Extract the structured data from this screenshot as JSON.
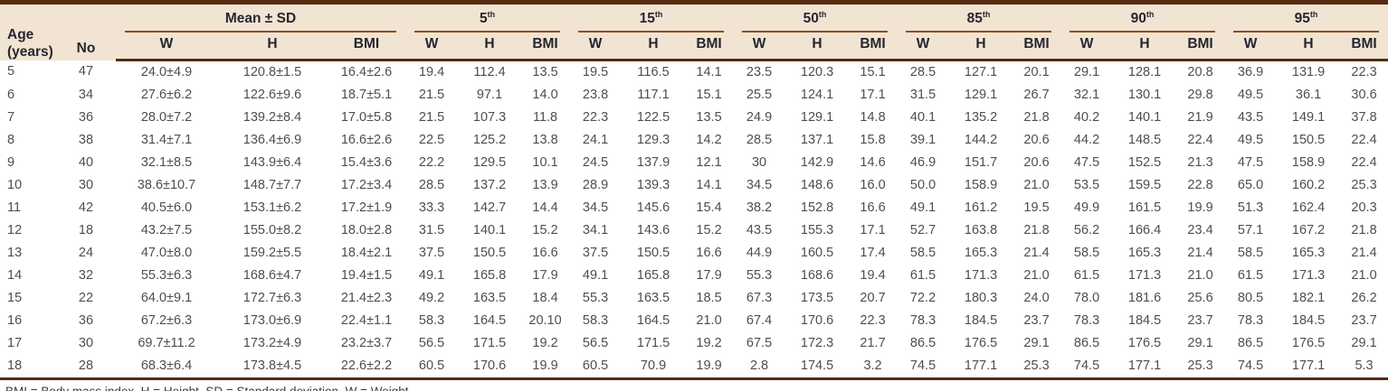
{
  "table": {
    "header": {
      "age_label": "Age",
      "age_sublabel": "(years)",
      "no_label": "No",
      "groups": [
        {
          "key": "mean-sd",
          "label": "Mean ± SD",
          "sup": ""
        },
        {
          "key": "p5",
          "label": "5",
          "sup": "th"
        },
        {
          "key": "p15",
          "label": "15",
          "sup": "th"
        },
        {
          "key": "p50",
          "label": "50",
          "sup": "th"
        },
        {
          "key": "p85",
          "label": "85",
          "sup": "th"
        },
        {
          "key": "p90",
          "label": "90",
          "sup": "th"
        },
        {
          "key": "p95",
          "label": "95",
          "sup": "th"
        }
      ],
      "sub_columns": [
        "W",
        "H",
        "BMI"
      ]
    },
    "rows": [
      {
        "age": "5",
        "no": "47",
        "values": [
          "24.0±4.9",
          "120.8±1.5",
          "16.4±2.6",
          "19.4",
          "112.4",
          "13.5",
          "19.5",
          "116.5",
          "14.1",
          "23.5",
          "120.3",
          "15.1",
          "28.5",
          "127.1",
          "20.1",
          "29.1",
          "128.1",
          "20.8",
          "36.9",
          "131.9",
          "22.3"
        ]
      },
      {
        "age": "6",
        "no": "34",
        "values": [
          "27.6±6.2",
          "122.6±9.6",
          "18.7±5.1",
          "21.5",
          "97.1",
          "14.0",
          "23.8",
          "117.1",
          "15.1",
          "25.5",
          "124.1",
          "17.1",
          "31.5",
          "129.1",
          "26.7",
          "32.1",
          "130.1",
          "29.8",
          "49.5",
          "36.1",
          "30.6"
        ]
      },
      {
        "age": "7",
        "no": "36",
        "values": [
          "28.0±7.2",
          "139.2±8.4",
          "17.0±5.8",
          "21.5",
          "107.3",
          "11.8",
          "22.3",
          "122.5",
          "13.5",
          "24.9",
          "129.1",
          "14.8",
          "40.1",
          "135.2",
          "21.8",
          "40.2",
          "140.1",
          "21.9",
          "43.5",
          "149.1",
          "37.8"
        ]
      },
      {
        "age": "8",
        "no": "38",
        "values": [
          "31.4±7.1",
          "136.4±6.9",
          "16.6±2.6",
          "22.5",
          "125.2",
          "13.8",
          "24.1",
          "129.3",
          "14.2",
          "28.5",
          "137.1",
          "15.8",
          "39.1",
          "144.2",
          "20.6",
          "44.2",
          "148.5",
          "22.4",
          "49.5",
          "150.5",
          "22.4"
        ]
      },
      {
        "age": "9",
        "no": "40",
        "values": [
          "32.1±8.5",
          "143.9±6.4",
          "15.4±3.6",
          "22.2",
          "129.5",
          "10.1",
          "24.5",
          "137.9",
          "12.1",
          "30",
          "142.9",
          "14.6",
          "46.9",
          "151.7",
          "20.6",
          "47.5",
          "152.5",
          "21.3",
          "47.5",
          "158.9",
          "22.4"
        ]
      },
      {
        "age": "10",
        "no": "30",
        "values": [
          "38.6±10.7",
          "148.7±7.7",
          "17.2±3.4",
          "28.5",
          "137.2",
          "13.9",
          "28.9",
          "139.3",
          "14.1",
          "34.5",
          "148.6",
          "16.0",
          "50.0",
          "158.9",
          "21.0",
          "53.5",
          "159.5",
          "22.8",
          "65.0",
          "160.2",
          "25.3"
        ]
      },
      {
        "age": "11",
        "no": "42",
        "values": [
          "40.5±6.0",
          "153.1±6.2",
          "17.2±1.9",
          "33.3",
          "142.7",
          "14.4",
          "34.5",
          "145.6",
          "15.4",
          "38.2",
          "152.8",
          "16.6",
          "49.1",
          "161.2",
          "19.5",
          "49.9",
          "161.5",
          "19.9",
          "51.3",
          "162.4",
          "20.3"
        ]
      },
      {
        "age": "12",
        "no": "18",
        "values": [
          "43.2±7.5",
          "155.0±8.2",
          "18.0±2.8",
          "31.5",
          "140.1",
          "15.2",
          "34.1",
          "143.6",
          "15.2",
          "43.5",
          "155.3",
          "17.1",
          "52.7",
          "163.8",
          "21.8",
          "56.2",
          "166.4",
          "23.4",
          "57.1",
          "167.2",
          "21.8"
        ]
      },
      {
        "age": "13",
        "no": "24",
        "values": [
          "47.0±8.0",
          "159.2±5.5",
          "18.4±2.1",
          "37.5",
          "150.5",
          "16.6",
          "37.5",
          "150.5",
          "16.6",
          "44.9",
          "160.5",
          "17.4",
          "58.5",
          "165.3",
          "21.4",
          "58.5",
          "165.3",
          "21.4",
          "58.5",
          "165.3",
          "21.4"
        ]
      },
      {
        "age": "14",
        "no": "32",
        "values": [
          "55.3±6.3",
          "168.6±4.7",
          "19.4±1.5",
          "49.1",
          "165.8",
          "17.9",
          "49.1",
          "165.8",
          "17.9",
          "55.3",
          "168.6",
          "19.4",
          "61.5",
          "171.3",
          "21.0",
          "61.5",
          "171.3",
          "21.0",
          "61.5",
          "171.3",
          "21.0"
        ]
      },
      {
        "age": "15",
        "no": "22",
        "values": [
          "64.0±9.1",
          "172.7±6.3",
          "21.4±2.3",
          "49.2",
          "163.5",
          "18.4",
          "55.3",
          "163.5",
          "18.5",
          "67.3",
          "173.5",
          "20.7",
          "72.2",
          "180.3",
          "24.0",
          "78.0",
          "181.6",
          "25.6",
          "80.5",
          "182.1",
          "26.2"
        ]
      },
      {
        "age": "16",
        "no": "36",
        "values": [
          "67.2±6.3",
          "173.0±6.9",
          "22.4±1.1",
          "58.3",
          "164.5",
          "20.10",
          "58.3",
          "164.5",
          "21.0",
          "67.4",
          "170.6",
          "22.3",
          "78.3",
          "184.5",
          "23.7",
          "78.3",
          "184.5",
          "23.7",
          "78.3",
          "184.5",
          "23.7"
        ]
      },
      {
        "age": "17",
        "no": "30",
        "values": [
          "69.7±11.2",
          "173.2±4.9",
          "23.2±3.7",
          "56.5",
          "171.5",
          "19.2",
          "56.5",
          "171.5",
          "19.2",
          "67.5",
          "172.3",
          "21.7",
          "86.5",
          "176.5",
          "29.1",
          "86.5",
          "176.5",
          "29.1",
          "86.5",
          "176.5",
          "29.1"
        ]
      },
      {
        "age": "18",
        "no": "28",
        "values": [
          "68.3±6.4",
          "173.8±4.5",
          "22.6±2.2",
          "60.5",
          "170.6",
          "19.9",
          "60.5",
          "70.9",
          "19.9",
          "2.8",
          "174.5",
          "3.2",
          "74.5",
          "177.1",
          "25.3",
          "74.5",
          "177.1",
          "25.3",
          "74.5",
          "177.1",
          "5.3"
        ]
      }
    ],
    "footnote": "BMI = Body mass index, H = Height, SD = Standard deviation, W = Weight"
  },
  "colors": {
    "border_dark": "#552c11",
    "group_underline": "#8a4f1d",
    "header_bg": "#f2e4d3",
    "header_text": "#26262e",
    "body_text": "#4e4e4e"
  }
}
